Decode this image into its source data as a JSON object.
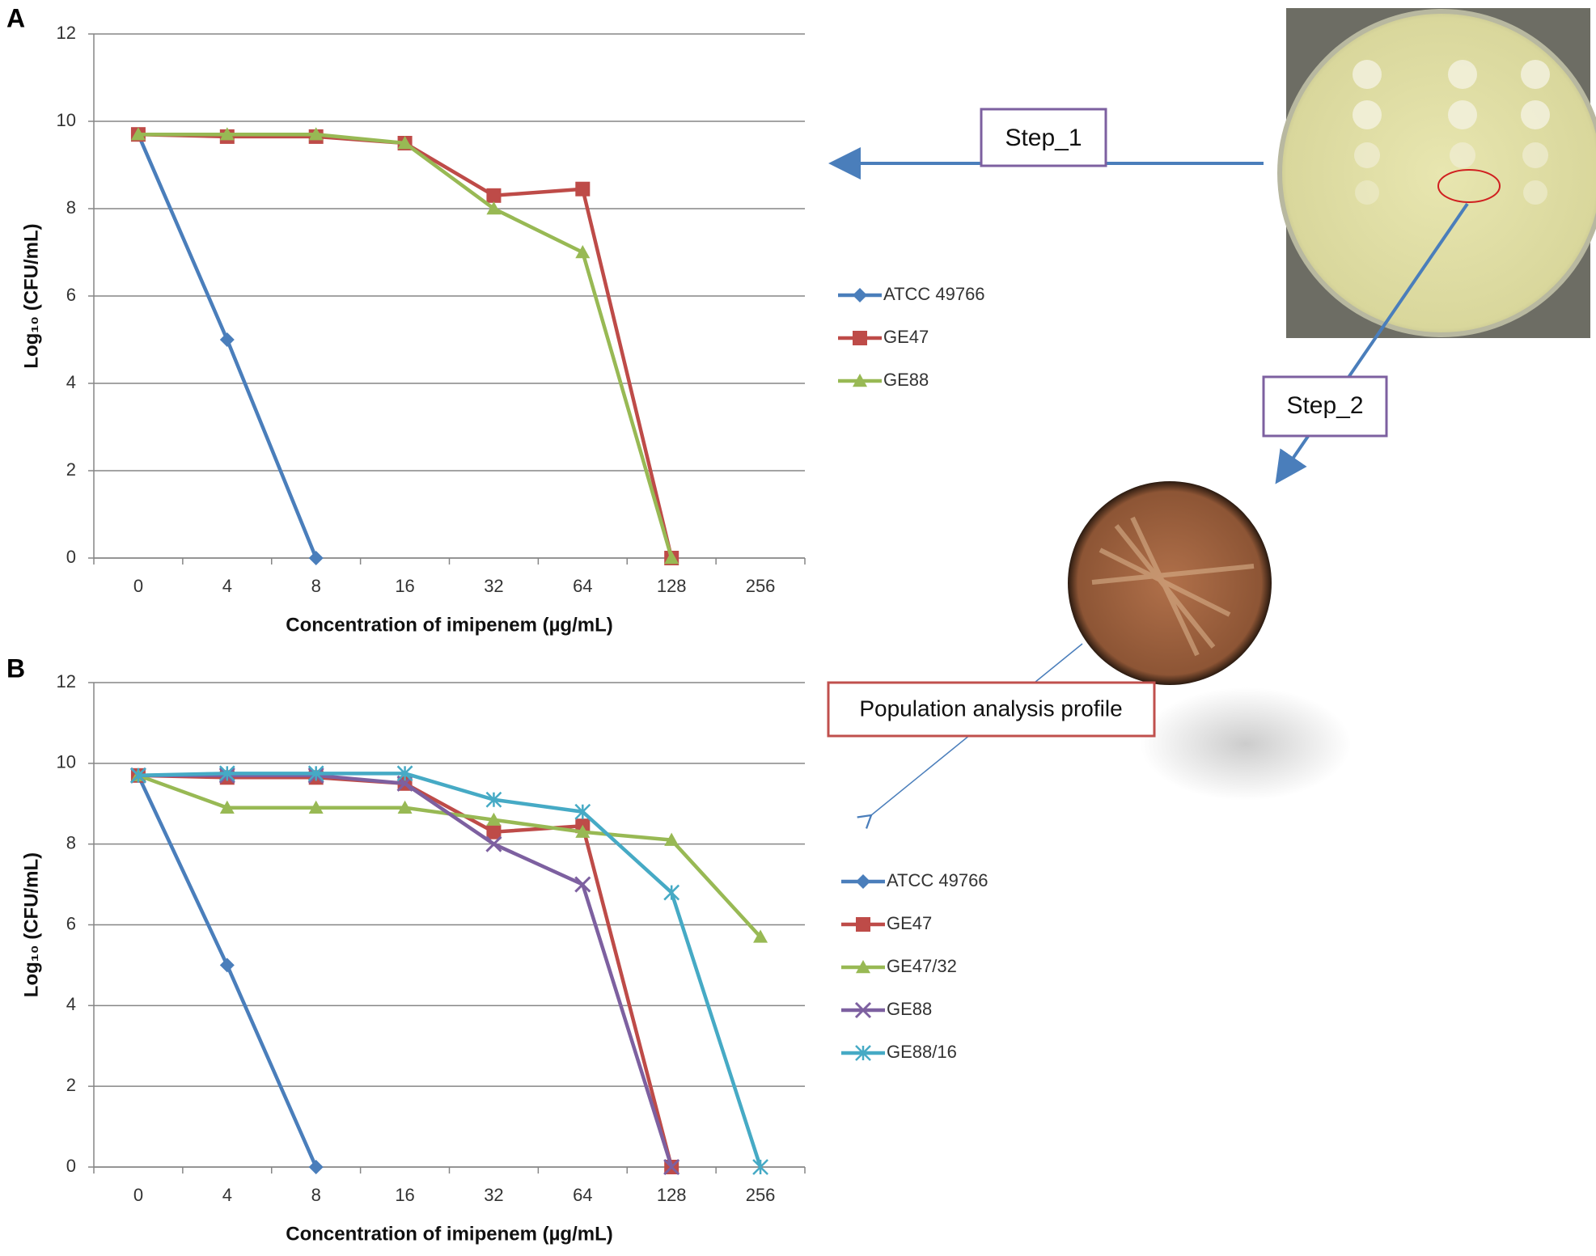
{
  "panels": [
    "A",
    "B"
  ],
  "annotations": [
    "Step_1",
    "Step_2",
    "Population analysis profile"
  ],
  "chart_data": [
    {
      "type": "line",
      "xlabel": "Concentration of imipenem (µg/mL)",
      "ylabel": "Log₁₀ (CFU/mL)",
      "categories": [
        "0",
        "4",
        "8",
        "16",
        "32",
        "64",
        "128",
        "256"
      ],
      "ylim": [
        0,
        12
      ],
      "yticks": [
        0,
        2,
        4,
        6,
        8,
        10,
        12
      ],
      "grid": true,
      "legend": "right",
      "series": [
        {
          "name": "ATCC 49766",
          "color": "#4a7ebb",
          "marker": "diamond",
          "values": [
            9.7,
            5,
            0,
            null,
            null,
            null,
            null,
            null
          ]
        },
        {
          "name": "GE47",
          "color": "#be4b48",
          "marker": "square",
          "values": [
            9.7,
            9.65,
            9.65,
            9.5,
            8.3,
            8.45,
            0,
            null
          ]
        },
        {
          "name": "GE88",
          "color": "#98b954",
          "marker": "triangle",
          "values": [
            9.7,
            9.7,
            9.7,
            9.5,
            8.0,
            7.0,
            0,
            null
          ]
        }
      ]
    },
    {
      "type": "line",
      "xlabel": "Concentration of imipenem (µg/mL)",
      "ylabel": "Log₁₀ (CFU/mL)",
      "categories": [
        "0",
        "4",
        "8",
        "16",
        "32",
        "64",
        "128",
        "256"
      ],
      "ylim": [
        0,
        12
      ],
      "yticks": [
        0,
        2,
        4,
        6,
        8,
        10,
        12
      ],
      "grid": true,
      "legend": "right",
      "series": [
        {
          "name": "ATCC 49766",
          "color": "#4a7ebb",
          "marker": "diamond",
          "values": [
            9.7,
            5,
            0,
            null,
            null,
            null,
            null,
            null
          ]
        },
        {
          "name": "GE47",
          "color": "#be4b48",
          "marker": "square",
          "values": [
            9.7,
            9.65,
            9.65,
            9.5,
            8.3,
            8.45,
            0,
            null
          ]
        },
        {
          "name": "GE47/32",
          "color": "#98b954",
          "marker": "triangle",
          "values": [
            9.7,
            8.9,
            8.9,
            8.9,
            8.6,
            8.3,
            8.1,
            5.7
          ]
        },
        {
          "name": "GE88",
          "color": "#7d60a0",
          "marker": "x",
          "values": [
            9.7,
            9.7,
            9.7,
            9.5,
            8.0,
            7.0,
            0,
            null
          ]
        },
        {
          "name": "GE88/16",
          "color": "#46aac5",
          "marker": "star",
          "values": [
            9.7,
            9.75,
            9.75,
            9.75,
            9.1,
            8.8,
            6.8,
            0
          ]
        }
      ]
    }
  ]
}
